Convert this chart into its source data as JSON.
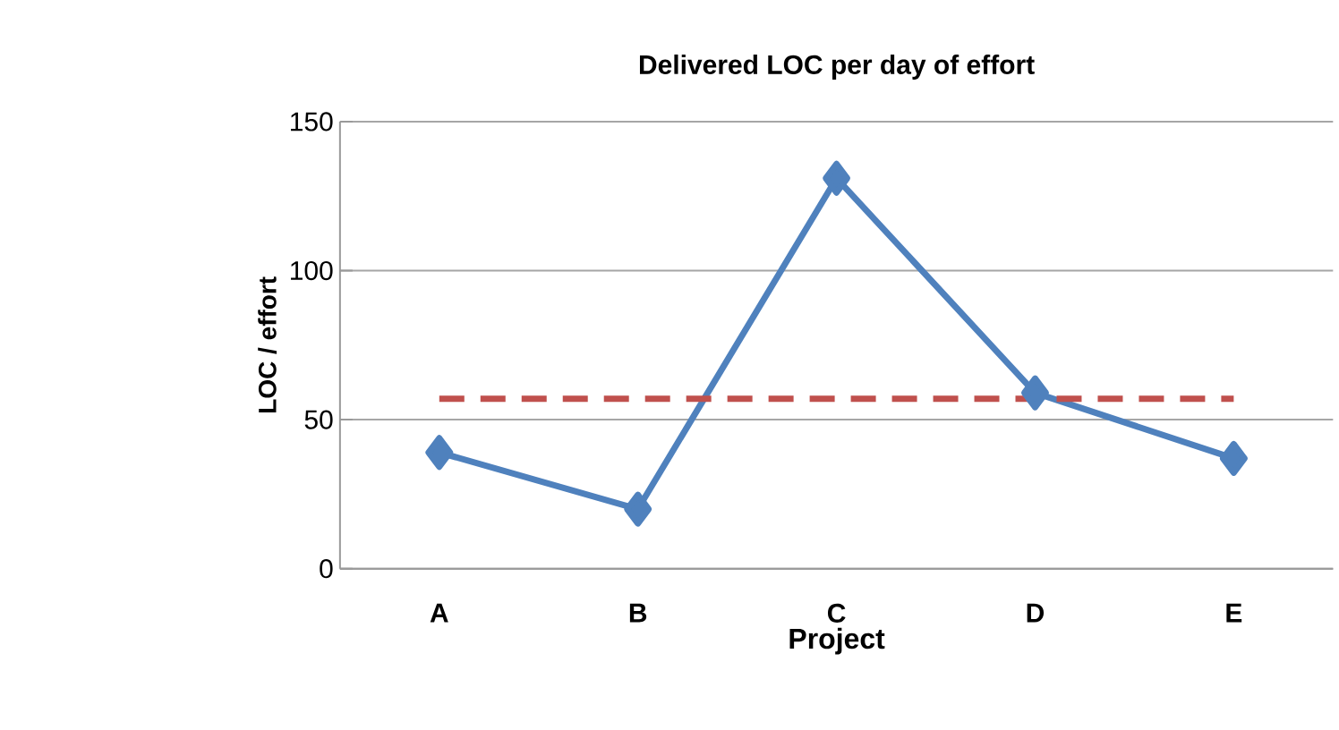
{
  "chart_data": {
    "type": "line",
    "title": "Delivered LOC per day of effort",
    "xlabel": "Project",
    "ylabel": "LOC / effort",
    "categories": [
      "A",
      "B",
      "C",
      "D",
      "E"
    ],
    "series": [
      {
        "color": "#4f81bd",
        "values": [
          39,
          20,
          131,
          59,
          37
        ],
        "marker": "diamond",
        "line_style": "solid"
      },
      {
        "color": "#c0504d",
        "values": [
          57,
          57,
          57,
          57,
          57
        ],
        "marker": "none",
        "line_style": "dashed"
      }
    ],
    "ylim": [
      0,
      150
    ],
    "yticks": [
      0,
      50,
      100,
      150
    ],
    "grid": "y"
  }
}
